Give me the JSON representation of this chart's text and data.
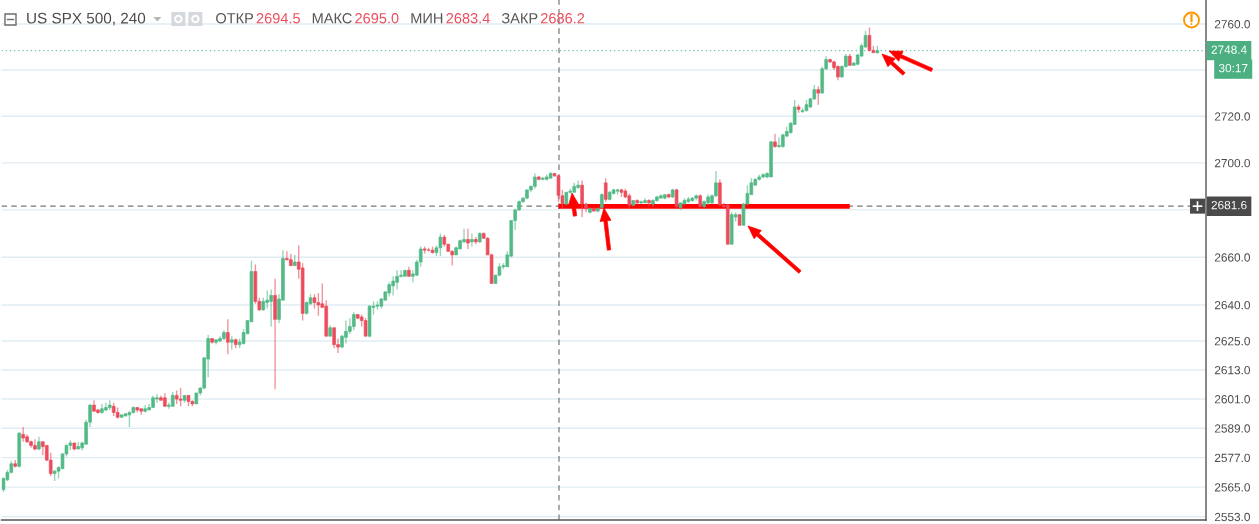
{
  "chart_data": {
    "type": "candlestick",
    "title": "US SPX 500, 240",
    "subtitle": "ОТКР 2694.5 МАКС 2695.0 МИН 2683.4 ЗАКР 2686.2",
    "categories": [
      null,
      null,
      null,
      null,
      null,
      null,
      null,
      null,
      null,
      null,
      null,
      null,
      null,
      null,
      null,
      null,
      null,
      null,
      null,
      null,
      null,
      null,
      null,
      null,
      null,
      null,
      null,
      null,
      null,
      null,
      null,
      null,
      null,
      null,
      null,
      null,
      null,
      null,
      null,
      null,
      null,
      null,
      null,
      null,
      null,
      null,
      null,
      null,
      null,
      null,
      null,
      null,
      null,
      null,
      null,
      null,
      null,
      null,
      null,
      null,
      null,
      null,
      null,
      null,
      null,
      null,
      null,
      null,
      null,
      null,
      null,
      null,
      null,
      null,
      null,
      null,
      null,
      null,
      null,
      null,
      null,
      null,
      null,
      null,
      null,
      null,
      null,
      null,
      null,
      null,
      null,
      null,
      null,
      null,
      null,
      null,
      null,
      null,
      null,
      null,
      null,
      null,
      null,
      null,
      null,
      null,
      null,
      null,
      null,
      null,
      null,
      null,
      null,
      null,
      null,
      null,
      null,
      null,
      null,
      null,
      null,
      null,
      null,
      null,
      null,
      null,
      null,
      null,
      null,
      null,
      null,
      null,
      null,
      null,
      null,
      null,
      null,
      null,
      null,
      null,
      null,
      null,
      null,
      null,
      null,
      null,
      null,
      null,
      null,
      null,
      null,
      null,
      null,
      null,
      null,
      null,
      null,
      null,
      null,
      null,
      null,
      null,
      null,
      null,
      null,
      null,
      null,
      null,
      null,
      null,
      null,
      null,
      null,
      null,
      null,
      null,
      null,
      null,
      null,
      null,
      null,
      null,
      null,
      null,
      null,
      null,
      null,
      null,
      null,
      null,
      null,
      null,
      null,
      null,
      null,
      null,
      null,
      null,
      null,
      null,
      null,
      null,
      null,
      null,
      null,
      null,
      null,
      null,
      null,
      null,
      null,
      null,
      null,
      null,
      null,
      null,
      null,
      null,
      null,
      null,
      null,
      null,
      null,
      null,
      null,
      null,
      null,
      null,
      null,
      null,
      null,
      null,
      null,
      null,
      null,
      null,
      null,
      null,
      null,
      null,
      null,
      null,
      null,
      null,
      null,
      null,
      null,
      null,
      null,
      null,
      null,
      null,
      null,
      null,
      null,
      null,
      null,
      null,
      null,
      null,
      null,
      null,
      null,
      null,
      null,
      null,
      null,
      null,
      null,
      null,
      null,
      null,
      null,
      null,
      null,
      null,
      null,
      null,
      null,
      null,
      null,
      null,
      null,
      null,
      null,
      null,
      null,
      null,
      null,
      null,
      null,
      null,
      null,
      null,
      null,
      null,
      null,
      null,
      null,
      null,
      null,
      null,
      null,
      null,
      null,
      null
    ],
    "ohlc": [
      [
        2564,
        2569,
        2563,
        2568.5
      ],
      [
        2568,
        2572,
        2567.5,
        2571
      ],
      [
        2571,
        2575.5,
        2570.5,
        2574.5
      ],
      [
        2574.5,
        2576,
        2573,
        2573.5
      ],
      [
        2573.5,
        2587.5,
        2573,
        2587
      ],
      [
        2586.5,
        2589.5,
        2583.5,
        2585
      ],
      [
        2585.5,
        2586.5,
        2583,
        2583.5
      ],
      [
        2583.5,
        2584,
        2581,
        2582
      ],
      [
        2582,
        2584.5,
        2580,
        2580.5
      ],
      [
        2580.5,
        2585.5,
        2580,
        2583.5
      ],
      [
        2583.5,
        2583.5,
        2578,
        2581.5
      ],
      [
        2582,
        2582,
        2575.5,
        2576
      ],
      [
        2576,
        2579,
        2569.5,
        2570.5
      ],
      [
        2570.5,
        2572,
        2567.5,
        2571.5
      ],
      [
        2571.5,
        2573.5,
        2568.5,
        2573
      ],
      [
        2572.5,
        2579,
        2572.5,
        2578.5
      ],
      [
        2578.5,
        2582.5,
        2577.5,
        2582
      ],
      [
        2582,
        2584,
        2580,
        2583
      ],
      [
        2583,
        2583,
        2580,
        2580.5
      ],
      [
        2580.5,
        2583.5,
        2580.5,
        2581.5
      ],
      [
        2581,
        2583.5,
        2580,
        2583
      ],
      [
        2582.5,
        2592.5,
        2582.5,
        2591.5
      ],
      [
        2591.5,
        2599,
        2589.5,
        2598.5
      ],
      [
        2598.5,
        2600.5,
        2596,
        2596
      ],
      [
        2596.5,
        2597,
        2595,
        2595.5
      ],
      [
        2595.5,
        2599,
        2595,
        2597
      ],
      [
        2596.5,
        2599.5,
        2596,
        2597.5
      ],
      [
        2597.5,
        2600.5,
        2596.5,
        2598.5
      ],
      [
        2598,
        2599.5,
        2594,
        2595.5
      ],
      [
        2595.5,
        2597.5,
        2593,
        2593.5
      ],
      [
        2593.5,
        2594.5,
        2593.5,
        2594.5
      ],
      [
        2594,
        2595,
        2594,
        2595
      ],
      [
        2594.5,
        2596,
        2589.5,
        2595.5
      ],
      [
        2595.5,
        2598,
        2595,
        2597.5
      ],
      [
        2597.5,
        2597.5,
        2595.5,
        2596.5
      ],
      [
        2597,
        2597,
        2594.5,
        2596
      ],
      [
        2596,
        2598.5,
        2595.5,
        2597
      ],
      [
        2596.5,
        2599,
        2596.5,
        2597.5
      ],
      [
        2597.5,
        2602.5,
        2597.5,
        2601.5
      ],
      [
        2601,
        2603,
        2599.5,
        2601.5
      ],
      [
        2601.5,
        2602.5,
        2600.5,
        2600.5
      ],
      [
        2601.5,
        2603.5,
        2598,
        2598
      ],
      [
        2598,
        2599.5,
        2597,
        2598.5
      ],
      [
        2598,
        2604,
        2598,
        2602.5
      ],
      [
        2602.5,
        2604.5,
        2599,
        2601
      ],
      [
        2601,
        2605.5,
        2598,
        2600.5
      ],
      [
        2600.5,
        2602.5,
        2599.5,
        2602.5
      ],
      [
        2602.5,
        2602.5,
        2598,
        2600
      ],
      [
        2600,
        2600.5,
        2598,
        2599
      ],
      [
        2599,
        2603.5,
        2599,
        2603.5
      ],
      [
        2603.5,
        2606,
        2602.5,
        2605.5
      ],
      [
        2605.5,
        2618,
        2605,
        2618
      ],
      [
        2617.5,
        2627.5,
        2610,
        2626
      ],
      [
        2626,
        2626,
        2624,
        2624.5
      ],
      [
        2624.5,
        2625.5,
        2623.5,
        2625.5
      ],
      [
        2625,
        2627,
        2624.5,
        2626
      ],
      [
        2626,
        2629.5,
        2625.5,
        2628.5
      ],
      [
        2628.5,
        2634,
        2619.5,
        2624.5
      ],
      [
        2624.5,
        2627,
        2621.5,
        2625.5
      ],
      [
        2625.5,
        2626,
        2622,
        2623.5
      ],
      [
        2623.5,
        2626,
        2622,
        2624.5
      ],
      [
        2624,
        2630,
        2623.5,
        2628.5
      ],
      [
        2628,
        2633.5,
        2628,
        2633.5
      ],
      [
        2633,
        2658.5,
        2633,
        2654
      ],
      [
        2654,
        2657,
        2640.5,
        2641.5
      ],
      [
        2641.5,
        2643,
        2637.5,
        2638
      ],
      [
        2638,
        2643,
        2637.5,
        2641.5
      ],
      [
        2641,
        2646,
        2638.5,
        2642
      ],
      [
        2641.5,
        2646.5,
        2631,
        2644
      ],
      [
        2644,
        2651,
        2605,
        2634
      ],
      [
        2634,
        2644.5,
        2632.5,
        2642.5
      ],
      [
        2642,
        2663,
        2642,
        2659.5
      ],
      [
        2659.5,
        2662.5,
        2658.5,
        2659
      ],
      [
        2659,
        2661.5,
        2656.5,
        2656.5
      ],
      [
        2656.5,
        2661,
        2656.5,
        2658
      ],
      [
        2658,
        2665,
        2651,
        2655
      ],
      [
        2655.5,
        2657.5,
        2633.5,
        2636.5
      ],
      [
        2636.5,
        2641.5,
        2636,
        2641
      ],
      [
        2640.5,
        2644.5,
        2640,
        2643
      ],
      [
        2643,
        2644.5,
        2638.5,
        2641
      ],
      [
        2641,
        2645,
        2635.5,
        2640
      ],
      [
        2640.5,
        2649,
        2639,
        2639
      ],
      [
        2639.5,
        2642,
        2627,
        2627
      ],
      [
        2627,
        2631.5,
        2627,
        2630.5
      ],
      [
        2630.5,
        2630.5,
        2622,
        2623.5
      ],
      [
        2623.5,
        2626,
        2620,
        2622.5
      ],
      [
        2622.5,
        2627.5,
        2622,
        2627
      ],
      [
        2626.5,
        2633.5,
        2624,
        2629
      ],
      [
        2629,
        2634.5,
        2628,
        2631
      ],
      [
        2631,
        2637,
        2629.5,
        2636
      ],
      [
        2636,
        2636,
        2634,
        2634.5
      ],
      [
        2635,
        2636,
        2631,
        2633.5
      ],
      [
        2633.5,
        2634.5,
        2627,
        2627
      ],
      [
        2627,
        2640,
        2626.5,
        2639.5
      ],
      [
        2639,
        2641.5,
        2636,
        2639.5
      ],
      [
        2639.5,
        2641.5,
        2638,
        2640
      ],
      [
        2639.5,
        2643,
        2638.5,
        2642.5
      ],
      [
        2642,
        2645.5,
        2642,
        2645.5
      ],
      [
        2645,
        2649.5,
        2643.5,
        2648.5
      ],
      [
        2648,
        2652,
        2644,
        2650
      ],
      [
        2649.5,
        2654.5,
        2646.5,
        2652
      ],
      [
        2652,
        2654.5,
        2651.5,
        2652.5
      ],
      [
        2652,
        2654.5,
        2652,
        2654.5
      ],
      [
        2654.5,
        2656,
        2652,
        2652
      ],
      [
        2652,
        2654.5,
        2649.5,
        2653
      ],
      [
        2652.5,
        2659,
        2652,
        2658
      ],
      [
        2658,
        2664.5,
        2656,
        2663.5
      ],
      [
        2663.5,
        2664.5,
        2661.5,
        2663
      ],
      [
        2663,
        2664,
        2662.5,
        2663
      ],
      [
        2663,
        2664.5,
        2661.5,
        2662
      ],
      [
        2662,
        2665,
        2660.5,
        2664
      ],
      [
        2664,
        2670,
        2660.5,
        2668.5
      ],
      [
        2668.5,
        2669.5,
        2664.5,
        2665.5
      ],
      [
        2665.5,
        2665.5,
        2662.5,
        2662.5
      ],
      [
        2662.5,
        2663,
        2656.5,
        2661
      ],
      [
        2661,
        2664.5,
        2661,
        2664
      ],
      [
        2663.5,
        2667.5,
        2663.5,
        2667
      ],
      [
        2666.5,
        2672,
        2666,
        2667.5
      ],
      [
        2667.5,
        2672,
        2663.5,
        2666
      ],
      [
        2666.5,
        2670,
        2664.5,
        2667.5
      ],
      [
        2667.5,
        2668.5,
        2665.5,
        2666.5
      ],
      [
        2666.5,
        2670.5,
        2666,
        2670
      ],
      [
        2670,
        2670.5,
        2668,
        2668
      ],
      [
        2668,
        2668.5,
        2661,
        2661
      ],
      [
        2661,
        2661.5,
        2649,
        2649
      ],
      [
        2649,
        2652.5,
        2649,
        2652.5
      ],
      [
        2652.5,
        2657.5,
        2652,
        2656
      ],
      [
        2656,
        2657.5,
        2655,
        2656.5
      ],
      [
        2656,
        2662.5,
        2656,
        2661
      ],
      [
        2660.5,
        2675.5,
        2660,
        2675.5
      ],
      [
        2675.5,
        2680.5,
        2671.5,
        2680
      ],
      [
        2680,
        2684,
        2679.5,
        2683.5
      ],
      [
        2683.5,
        2685.5,
        2683,
        2685
      ],
      [
        2685,
        2688.5,
        2684.5,
        2688.5
      ],
      [
        2688.5,
        2690.5,
        2687.5,
        2690
      ],
      [
        2690,
        2695.5,
        2689,
        2694
      ],
      [
        2694,
        2694.5,
        2692.5,
        2693
      ],
      [
        2693,
        2694,
        2692.5,
        2693.5
      ],
      [
        2693,
        2695,
        2692.5,
        2694
      ],
      [
        2693.5,
        2696,
        2693.5,
        2695.5
      ],
      [
        2695.5,
        2695.5,
        2694,
        2694.5
      ],
      [
        2694.5,
        2695.0,
        2683.4,
        2686.2
      ],
      [
        2686,
        2688.5,
        2680.5,
        2682.5
      ],
      [
        2682.5,
        2687.5,
        2682,
        2687.5
      ],
      [
        2687.5,
        2689,
        2687,
        2688
      ],
      [
        2687.5,
        2691.5,
        2687.5,
        2690
      ],
      [
        2689.5,
        2692.5,
        2689,
        2690.5
      ],
      [
        2690.5,
        2692.5,
        2677,
        2682.5
      ],
      [
        2682.5,
        2683,
        2679,
        2680.5
      ],
      [
        2679,
        2681,
        2678.5,
        2680.5
      ],
      [
        2680.5,
        2681,
        2679.5,
        2679.5
      ],
      [
        2679.5,
        2681,
        2679,
        2680.5
      ],
      [
        2681,
        2687,
        2680.5,
        2686.5
      ],
      [
        2691.5,
        2693.5,
        2683.5,
        2684.5
      ],
      [
        2684.5,
        2688,
        2684,
        2687.5
      ],
      [
        2687,
        2689,
        2686.5,
        2688.5
      ],
      [
        2688,
        2689,
        2686.5,
        2688.5
      ],
      [
        2688.5,
        2689,
        2685.5,
        2687.5
      ],
      [
        2688,
        2689,
        2685,
        2685.5
      ],
      [
        2686,
        2687,
        2680.5,
        2682
      ],
      [
        2682,
        2684,
        2681.5,
        2684
      ],
      [
        2684,
        2684.5,
        2682.5,
        2683
      ],
      [
        2683,
        2684,
        2682.5,
        2683.5
      ],
      [
        2683,
        2685,
        2683,
        2684
      ],
      [
        2684,
        2684.5,
        2681.5,
        2683
      ],
      [
        2682.5,
        2684.5,
        2681.5,
        2684
      ],
      [
        2684,
        2686,
        2683.5,
        2685.5
      ],
      [
        2685,
        2686.5,
        2685,
        2686
      ],
      [
        2685,
        2686.5,
        2684.5,
        2686.5
      ],
      [
        2686.5,
        2687,
        2685,
        2685.5
      ],
      [
        2685.5,
        2689,
        2685,
        2688.5
      ],
      [
        2688.5,
        2689,
        2680.5,
        2681.5
      ],
      [
        2681,
        2683,
        2680,
        2683
      ],
      [
        2682.5,
        2685,
        2682,
        2684
      ],
      [
        2683.5,
        2685.5,
        2683,
        2684.5
      ],
      [
        2684,
        2685.5,
        2683.5,
        2685
      ],
      [
        2685,
        2686.5,
        2684,
        2686
      ],
      [
        2686,
        2686.5,
        2681,
        2681.5
      ],
      [
        2681.5,
        2684,
        2680.5,
        2683.5
      ],
      [
        2683,
        2686.5,
        2682,
        2685.5
      ],
      [
        2683,
        2686.5,
        2682.5,
        2686
      ],
      [
        2686,
        2696.5,
        2685.5,
        2691.5
      ],
      [
        2691.5,
        2693,
        2682,
        2682
      ],
      [
        2682,
        2683,
        2680.5,
        2681.5
      ],
      [
        2682,
        2682.5,
        2665.5,
        2665.5
      ],
      [
        2665.5,
        2679,
        2665.5,
        2678
      ],
      [
        2677,
        2679,
        2675,
        2678
      ],
      [
        2678,
        2678,
        2673.5,
        2673.5
      ],
      [
        2673.5,
        2683,
        2673.5,
        2682.5
      ],
      [
        2682.5,
        2690.5,
        2682,
        2687
      ],
      [
        2686.5,
        2693.5,
        2686.5,
        2691.5
      ],
      [
        2690.5,
        2693.5,
        2690.5,
        2693
      ],
      [
        2693,
        2695,
        2692.5,
        2694
      ],
      [
        2694,
        2695.5,
        2693.5,
        2695
      ],
      [
        2694,
        2696,
        2693.5,
        2695.5
      ],
      [
        2694,
        2709.5,
        2694,
        2709
      ],
      [
        2709,
        2712.5,
        2706.5,
        2707
      ],
      [
        2707,
        2711,
        2706.5,
        2707.5
      ],
      [
        2707,
        2712.5,
        2706.5,
        2712
      ],
      [
        2711.5,
        2715.5,
        2711,
        2713.5
      ],
      [
        2713,
        2717.5,
        2712.5,
        2717
      ],
      [
        2716.5,
        2727,
        2716.5,
        2724
      ],
      [
        2724,
        2725,
        2721.5,
        2723
      ],
      [
        2722,
        2723.5,
        2721.5,
        2722.5
      ],
      [
        2722.5,
        2727,
        2722,
        2725
      ],
      [
        2724,
        2728,
        2723.5,
        2727.5
      ],
      [
        2727.5,
        2733.5,
        2727,
        2731.5
      ],
      [
        2731.5,
        2733,
        2725,
        2730
      ],
      [
        2730,
        2741.5,
        2730,
        2740.5
      ],
      [
        2740.5,
        2746,
        2740,
        2744.5
      ],
      [
        2744.5,
        2745,
        2743,
        2743.5
      ],
      [
        2743.5,
        2744,
        2740,
        2741
      ],
      [
        2741.5,
        2742,
        2735.5,
        2737
      ],
      [
        2737,
        2742,
        2736.5,
        2741.5
      ],
      [
        2741.5,
        2747,
        2741,
        2746
      ],
      [
        2746,
        2747,
        2742,
        2742
      ],
      [
        2742,
        2743.5,
        2742,
        2743
      ],
      [
        2742.5,
        2747,
        2742,
        2746.5
      ],
      [
        2746,
        2751.5,
        2746,
        2750.5
      ],
      [
        2750,
        2757,
        2749.5,
        2755
      ],
      [
        2755,
        2758.5,
        2748,
        2748.5
      ],
      [
        2748.5,
        2750.5,
        2747.5,
        2747.5
      ],
      [
        2747.5,
        2750.5,
        2747,
        2748.4
      ],
      null,
      null,
      null,
      null,
      null,
      null,
      null,
      null,
      null,
      null,
      null,
      null,
      null,
      null,
      null,
      null,
      null,
      null,
      null,
      null,
      null,
      null,
      null,
      null,
      null,
      null,
      null,
      null,
      null,
      null,
      null,
      null,
      null,
      null,
      null,
      null,
      null,
      null,
      null,
      null,
      null,
      null,
      null,
      null,
      null,
      null,
      null,
      null,
      null,
      null,
      null,
      null,
      null,
      null,
      null,
      null,
      null,
      null,
      null,
      null,
      null,
      null,
      null,
      null,
      null,
      null,
      null,
      null,
      null,
      null,
      null,
      null,
      null,
      null,
      null,
      null,
      null,
      null,
      null,
      null,
      null,
      null,
      null
    ],
    "colors": [
      "#53b987",
      "#53b987",
      "#53b987",
      "#eb4d5c",
      "#53b987",
      "#eb4d5c",
      "#eb4d5c",
      "#eb4d5c",
      "#eb4d5c",
      "#53b987",
      "#eb4d5c",
      "#eb4d5c",
      "#eb4d5c",
      "#53b987",
      "#53b987",
      "#53b987",
      "#53b987",
      "#53b987",
      "#eb4d5c",
      "#53b987",
      "#53b987",
      "#53b987",
      "#53b987",
      "#eb4d5c",
      "#eb4d5c",
      "#53b987",
      "#53b987",
      "#53b987",
      "#eb4d5c",
      "#eb4d5c",
      "#53b987",
      "#53b987",
      "#53b987",
      "#53b987",
      "#eb4d5c",
      "#eb4d5c",
      "#53b987",
      "#53b987",
      "#53b987",
      "#53b987",
      "#eb4d5c",
      "#eb4d5c",
      "#53b987",
      "#53b987",
      "#eb4d5c",
      "#eb4d5c",
      "#53b987",
      "#eb4d5c",
      "#eb4d5c",
      "#53b987",
      "#53b987",
      "#53b987",
      "#53b987",
      "#eb4d5c",
      "#53b987",
      "#53b987",
      "#53b987",
      "#eb4d5c",
      "#53b987",
      "#eb4d5c",
      "#53b987",
      "#53b987",
      "#53b987",
      "#53b987",
      "#eb4d5c",
      "#eb4d5c",
      "#53b987",
      "#53b987",
      "#53b987",
      "#eb4d5c",
      "#53b987",
      "#53b987",
      "#eb4d5c",
      "#eb4d5c",
      "#53b987",
      "#eb4d5c",
      "#eb4d5c",
      "#53b987",
      "#53b987",
      "#eb4d5c",
      "#eb4d5c",
      "#eb4d5c",
      "#eb4d5c",
      "#53b987",
      "#eb4d5c",
      "#eb4d5c",
      "#53b987",
      "#53b987",
      "#53b987",
      "#53b987",
      "#eb4d5c",
      "#eb4d5c",
      "#eb4d5c",
      "#53b987",
      "#53b987",
      "#53b987",
      "#53b987",
      "#53b987",
      "#53b987",
      "#53b987",
      "#53b987",
      "#53b987",
      "#53b987",
      "#eb4d5c",
      "#53b987",
      "#53b987",
      "#53b987",
      "#eb4d5c",
      "#eb4d5c",
      "#eb4d5c",
      "#53b987",
      "#53b987",
      "#eb4d5c",
      "#eb4d5c",
      "#eb4d5c",
      "#53b987",
      "#53b987",
      "#53b987",
      "#eb4d5c",
      "#53b987",
      "#eb4d5c",
      "#53b987",
      "#eb4d5c",
      "#eb4d5c",
      "#eb4d5c",
      "#53b987",
      "#53b987",
      "#53b987",
      "#53b987",
      "#53b987",
      "#53b987",
      "#53b987",
      "#53b987",
      "#53b987",
      "#53b987",
      "#53b987",
      "#eb4d5c",
      "#53b987",
      "#53b987",
      "#53b987",
      "#eb4d5c",
      "#eb4d5c",
      "#eb4d5c",
      "#53b987",
      "#53b987",
      "#53b987",
      "#53b987",
      "#eb4d5c",
      "#eb4d5c",
      "#53b987",
      "#eb4d5c",
      "#53b987",
      "#53b987",
      "#eb4d5c",
      "#53b987",
      "#53b987",
      "#53b987",
      "#eb4d5c",
      "#eb4d5c",
      "#eb4d5c",
      "#53b987",
      "#eb4d5c",
      "#53b987",
      "#53b987",
      "#eb4d5c",
      "#53b987",
      "#53b987",
      "#53b987",
      "#53b987",
      "#eb4d5c",
      "#53b987",
      "#eb4d5c",
      "#53b987",
      "#53b987",
      "#53b987",
      "#53b987",
      "#53b987",
      "#eb4d5c",
      "#53b987",
      "#53b987",
      "#53b987",
      "#53b987",
      "#eb4d5c",
      "#eb4d5c",
      "#eb4d5c",
      "#53b987",
      "#53b987",
      "#eb4d5c",
      "#53b987",
      "#53b987",
      "#53b987",
      "#53b987",
      "#53b987",
      "#53b987",
      "#53b987",
      "#53b987",
      "#eb4d5c",
      "#53b987",
      "#53b987",
      "#53b987",
      "#53b987",
      "#53b987",
      "#eb4d5c",
      "#53b987",
      "#53b987",
      "#53b987",
      "#53b987",
      "#eb4d5c",
      "#53b987",
      "#53b987",
      "#eb4d5c",
      "#eb4d5c",
      "#eb4d5c",
      "#53b987",
      "#53b987",
      "#eb4d5c",
      "#53b987",
      "#53b987",
      "#53b987",
      "#53b987",
      "#eb4d5c",
      "#eb4d5c",
      "#53b987",
      null,
      null,
      null,
      null,
      null,
      null,
      null,
      null,
      null,
      null,
      null,
      null,
      null,
      null,
      null,
      null,
      null,
      null,
      null,
      null,
      null,
      null,
      null,
      null,
      null,
      null,
      null,
      null,
      null,
      null,
      null,
      null,
      null,
      null,
      null,
      null,
      null,
      null,
      null,
      null,
      null,
      null,
      null,
      null,
      null,
      null,
      null,
      null,
      null,
      null,
      null,
      null,
      null,
      null,
      null,
      null,
      null,
      null,
      null,
      null,
      null,
      null,
      null,
      null,
      null,
      null,
      null,
      null,
      null,
      null,
      null,
      null,
      null,
      null,
      null,
      null,
      null,
      null,
      null,
      null,
      null,
      null,
      null
    ],
    "series": [
      {
        "type": "line",
        "color": "#ff0000",
        "values": [
          null,
          null,
          null,
          null,
          null,
          null,
          null,
          null,
          null,
          null,
          null,
          null,
          null,
          null,
          null,
          null,
          null,
          null,
          null,
          null,
          null,
          null,
          null,
          null,
          null,
          null,
          null,
          null,
          null,
          null,
          null,
          null,
          null,
          null,
          null,
          null,
          null,
          null,
          null,
          null,
          null,
          null,
          null,
          null,
          null,
          null,
          null,
          null,
          null,
          null,
          null,
          null,
          null,
          null,
          null,
          null,
          null,
          null,
          null,
          null,
          null,
          null,
          null,
          null,
          null,
          null,
          null,
          null,
          null,
          null,
          null,
          null,
          null,
          null,
          null,
          null,
          null,
          null,
          null,
          null,
          null,
          null,
          null,
          null,
          null,
          null,
          null,
          null,
          null,
          null,
          null,
          null,
          null,
          null,
          null,
          null,
          null,
          null,
          null,
          null,
          null,
          null,
          null,
          null,
          null,
          null,
          null,
          null,
          null,
          null,
          null,
          null,
          null,
          null,
          null,
          null,
          null,
          null,
          null,
          null,
          null,
          null,
          null,
          null,
          null,
          null,
          null,
          null,
          null,
          null,
          null,
          null,
          null,
          null,
          null,
          null,
          null,
          null,
          null,
          null,
          null,
          2681.5,
          2681.5,
          2681.5,
          2681.5,
          2681.5,
          2681.5,
          2681.5,
          2681.5,
          2681.5,
          2681.5,
          2681.5,
          2681.5,
          2681.5,
          2681.5,
          2681.5,
          2681.5,
          2681.5,
          2681.5,
          2681.5,
          2681.5,
          2681.5,
          2681.5,
          2681.5,
          2681.5,
          2681.5,
          2681.5,
          2681.5,
          2681.5,
          2681.5,
          2681.5,
          2681.5,
          2681.5,
          2681.5,
          2681.5,
          2681.5,
          2681.5,
          2681.5,
          2681.5,
          2681.5,
          2681.5,
          2681.5,
          2681.5,
          2681.5,
          2681.5,
          2681.5,
          2681.5,
          2681.5,
          2681.5,
          2681.5,
          2681.5,
          2681.5,
          2681.5,
          2681.5,
          2681.5,
          2681.5,
          2681.5,
          2681.5,
          2681.5,
          2681.5,
          2681.5,
          2681.5,
          2681.5,
          2681.5,
          2681.5,
          2681.5,
          2681.5,
          2681.5,
          2681.5,
          2681.5,
          2681.5,
          2681.5,
          2681.5,
          2681.5,
          2681.5,
          2681.5,
          null,
          null,
          null,
          null,
          null,
          null,
          null,
          null,
          null,
          null,
          null,
          null,
          null,
          null,
          null,
          null,
          null,
          null,
          null,
          null,
          null,
          null,
          null,
          null,
          null,
          null,
          null,
          null,
          null,
          null,
          null,
          null,
          null,
          null,
          null,
          null,
          null,
          null,
          null,
          null,
          null,
          null,
          null,
          null,
          null,
          null,
          null,
          null,
          null,
          null,
          null,
          null,
          null,
          null,
          null,
          null,
          null,
          null,
          null,
          null,
          null,
          null,
          null,
          null,
          null,
          null,
          null,
          null,
          null,
          null,
          null,
          null,
          null,
          null,
          null,
          null,
          null,
          null,
          null,
          null,
          null,
          null,
          null,
          null,
          null,
          null,
          null,
          null,
          null,
          null
        ]
      }
    ],
    "log": true,
    "ylim": [
      2551.7,
      2770.5
    ],
    "yticks": [
      {
        "value": 2760,
        "label": "2760.0"
      },
      {
        "value": 2740,
        "label": null
      },
      {
        "value": 2720,
        "label": "2720.0"
      },
      {
        "value": 2700,
        "label": "2700.0"
      },
      {
        "value": 2680,
        "label": null
      },
      {
        "value": 2660,
        "label": "2660.0"
      },
      {
        "value": 2640,
        "label": "2640.0"
      },
      {
        "value": 2625,
        "label": "2625.0"
      },
      {
        "value": 2613,
        "label": "2613.0"
      },
      {
        "value": 2601,
        "label": "2601.0"
      },
      {
        "value": 2589,
        "label": "2589.0"
      },
      {
        "value": 2577,
        "label": "2577.0"
      },
      {
        "value": 2565,
        "label": "2565.0"
      },
      {
        "value": 2553,
        "label": "2553.0"
      }
    ],
    "grid": "y",
    "tick_labels": "y",
    "ref_lines": [
      {
        "axis": "y",
        "value": 2748.4,
        "label": "2748.4",
        "color": "#4caf82",
        "line_style": "dotted"
      },
      {
        "axis": "y",
        "value": 2681.6,
        "label": "2681.6",
        "color": "#4a4a4a",
        "line_style": "dashed"
      }
    ],
    "annotations": [
      "30:17"
    ]
  }
}
